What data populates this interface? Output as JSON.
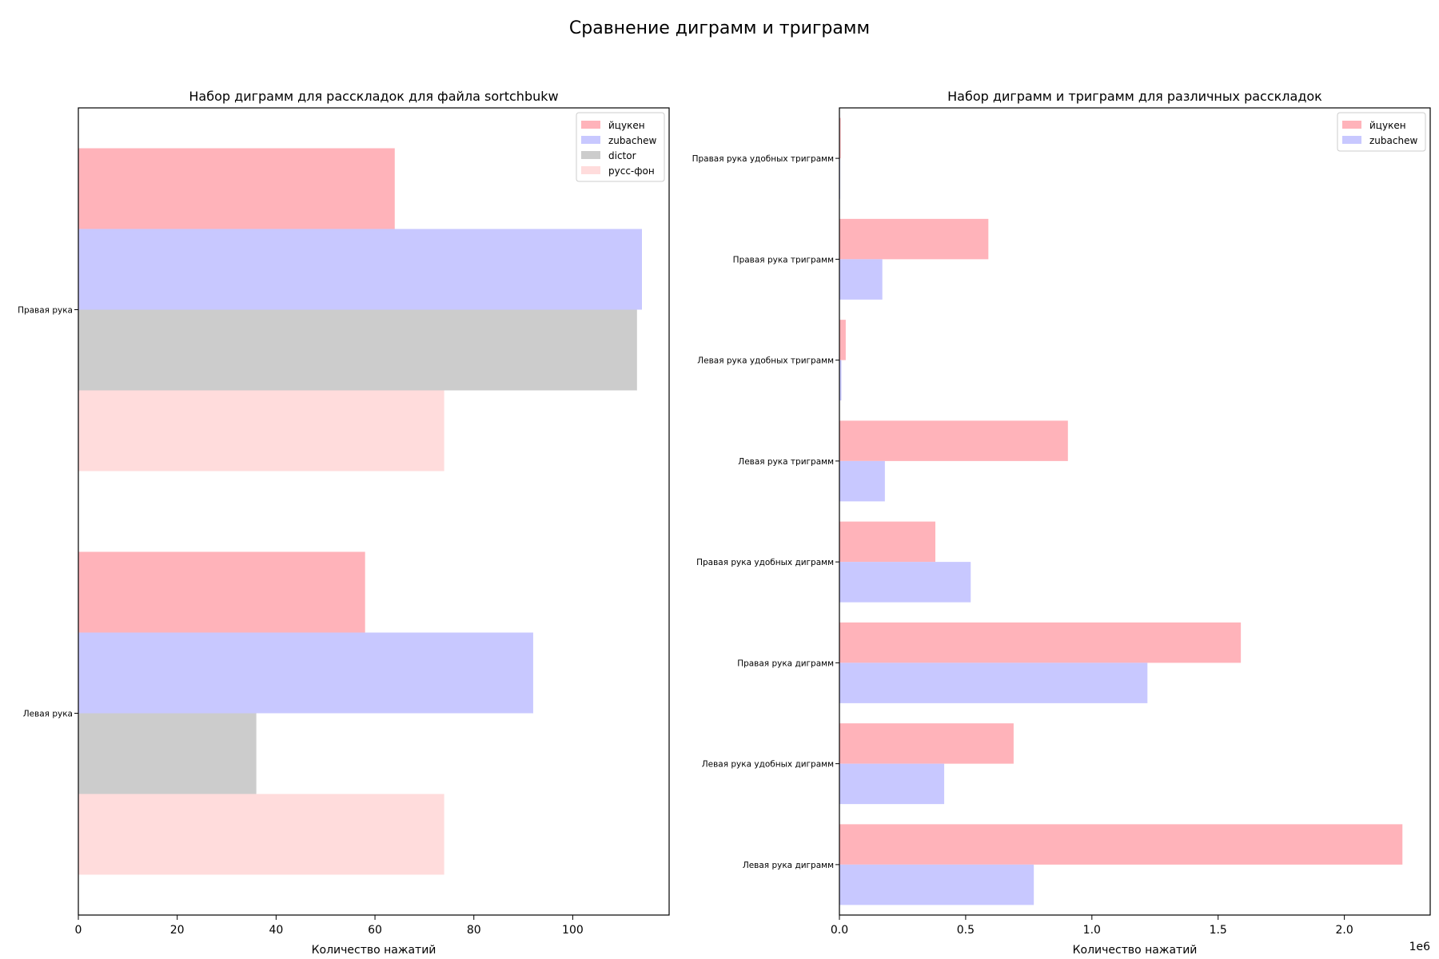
{
  "figure": {
    "suptitle": "Сравнение диграмм и триграмм"
  },
  "chart_data": [
    {
      "type": "bar",
      "orientation": "horizontal",
      "title": "Набор диграмм для рассклaдок для файла sortchbukw",
      "xlabel": "Количество нажатий",
      "ylabel": "",
      "categories": [
        "Левая рука",
        "Правая рука"
      ],
      "series": [
        {
          "name": "йцукен",
          "color": "#ffb3ba",
          "values": [
            58,
            64
          ]
        },
        {
          "name": "zubachew",
          "color": "#c8c8ff",
          "values": [
            92,
            114
          ]
        },
        {
          "name": "dictor",
          "color": "#cccccc",
          "values": [
            36,
            113
          ]
        },
        {
          "name": "русс-фон",
          "color": "#ffdcdc",
          "values": [
            74,
            74
          ]
        }
      ],
      "xlim": [
        0,
        119.5
      ],
      "xticks": [
        0,
        20,
        40,
        60,
        80,
        100
      ],
      "xtick_labels": [
        "0",
        "20",
        "40",
        "60",
        "80",
        "100"
      ],
      "legend": "top-right",
      "grid": false
    },
    {
      "type": "bar",
      "orientation": "horizontal",
      "title": "Набор диграмм и триграмм для различных рассклaдок",
      "xlabel": "Количество нажатий",
      "ylabel": "",
      "offset_label": "1e6",
      "categories": [
        "Левая рука диграмм",
        "Левая рука удобных диграмм",
        "Правая рука диграмм",
        "Правая рука удобных диграмм",
        "Левая рука триграмм",
        "Левая рука удобных триграмм",
        "Правая рука триграмм",
        "Правая рука удобных триграмм"
      ],
      "series": [
        {
          "name": "йцукен",
          "color": "#ffb3ba",
          "values": [
            2230000,
            690000,
            1590000,
            380000,
            905000,
            25000,
            590000,
            5000
          ]
        },
        {
          "name": "zubachew",
          "color": "#c8c8ff",
          "values": [
            770000,
            415000,
            1220000,
            520000,
            180000,
            8000,
            170000,
            3000
          ]
        }
      ],
      "xlim": [
        0,
        2340000
      ],
      "xticks": [
        0,
        500000,
        1000000,
        1500000,
        2000000
      ],
      "xtick_labels": [
        "0.0",
        "0.5",
        "1.0",
        "1.5",
        "2.0"
      ],
      "legend": "top-right",
      "grid": false
    }
  ]
}
